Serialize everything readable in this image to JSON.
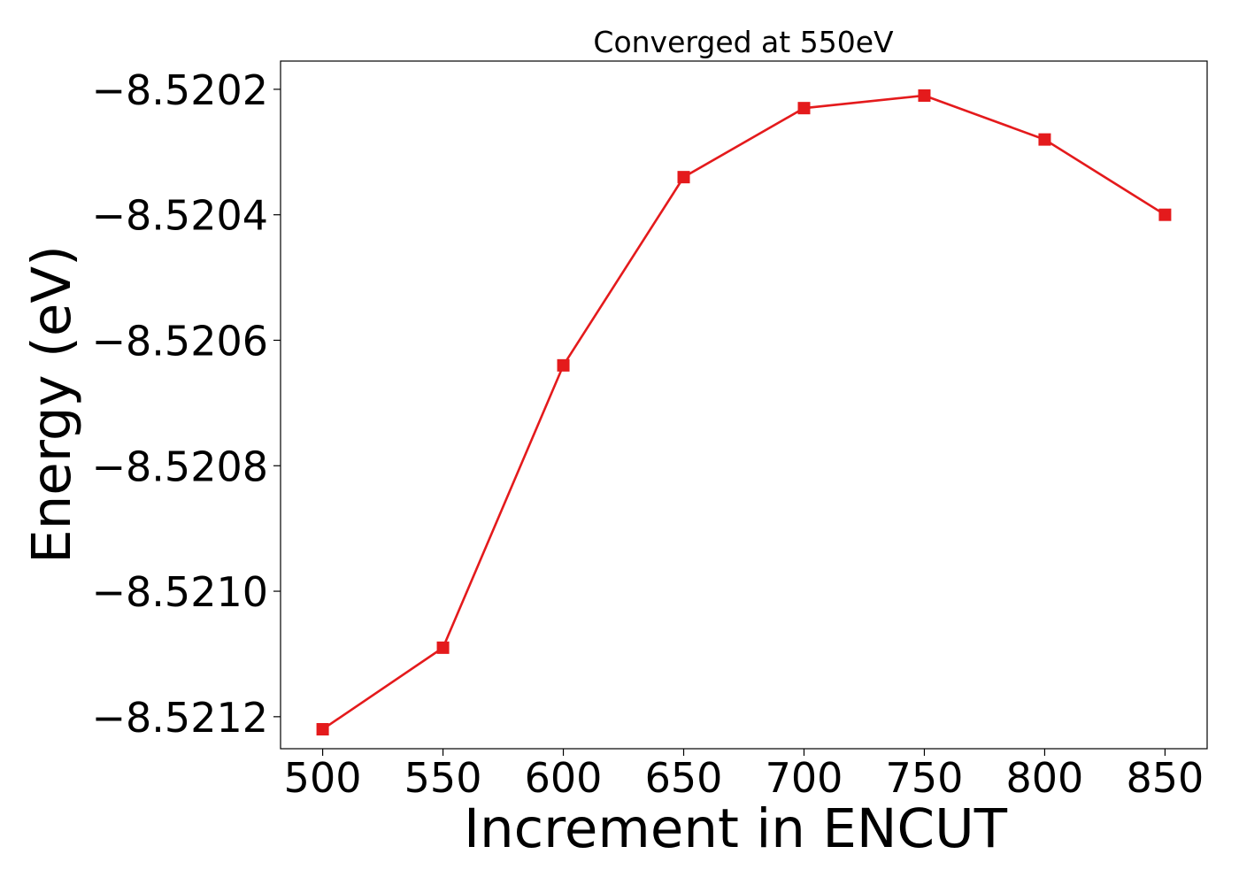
{
  "chart_data": {
    "type": "line",
    "title": "Converged at 550eV",
    "xlabel": "Increment in ENCUT",
    "ylabel": "Energy (eV)",
    "x": [
      500,
      550,
      600,
      650,
      700,
      750,
      800,
      850
    ],
    "series": [
      {
        "values": [
          -8.52122,
          -8.52109,
          -8.52064,
          -8.52034,
          -8.52023,
          -8.52021,
          -8.52028,
          -8.5204
        ],
        "color": "#e41a1c",
        "marker": "square"
      }
    ],
    "xticks": [
      500,
      550,
      600,
      650,
      700,
      750,
      800,
      850
    ],
    "xtick_labels": [
      "500",
      "550",
      "600",
      "650",
      "700",
      "750",
      "800",
      "850"
    ],
    "yticks": [
      -8.5212,
      -8.521,
      -8.5208,
      -8.5206,
      -8.5204,
      -8.5202
    ],
    "ytick_labels": [
      "−8.5212",
      "−8.5210",
      "−8.5208",
      "−8.5206",
      "−8.5204",
      "−8.5202"
    ],
    "xlim": [
      482.5,
      867.5
    ],
    "ylim": [
      -8.521251,
      -8.520155
    ],
    "grid": false,
    "legend": "none"
  }
}
